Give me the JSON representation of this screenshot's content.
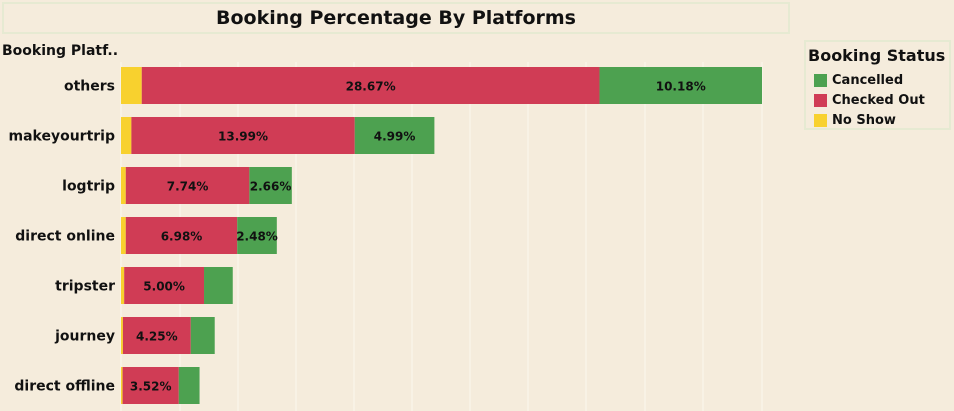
{
  "colors": {
    "cancelled": "#4da150",
    "checked_out": "#d03c55",
    "no_show": "#f8d12e"
  },
  "chart_data": {
    "type": "bar",
    "orientation": "horizontal",
    "stacked": true,
    "title": "Booking Percentage By Platforms",
    "ylabel": "Booking Platf..",
    "legend_title": "Booking Status",
    "legend_position": "right",
    "grid": true,
    "xlim": [
      0,
      40
    ],
    "categories": [
      "others",
      "makeyourtrip",
      "logtrip",
      "direct online",
      "tripster",
      "journey",
      "direct offline"
    ],
    "series": [
      {
        "name": "No Show",
        "values": [
          1.3,
          0.65,
          0.3,
          0.3,
          0.2,
          0.12,
          0.1
        ],
        "labels": [
          "",
          "",
          "",
          "",
          "",
          "",
          ""
        ]
      },
      {
        "name": "Checked Out",
        "values": [
          28.67,
          13.99,
          7.74,
          6.98,
          5.0,
          4.25,
          3.52
        ],
        "labels": [
          "28.67%",
          "13.99%",
          "7.74%",
          "6.98%",
          "5.00%",
          "4.25%",
          "3.52%"
        ]
      },
      {
        "name": "Cancelled",
        "values": [
          10.18,
          4.99,
          2.66,
          2.48,
          1.8,
          1.5,
          1.3
        ],
        "labels": [
          "10.18%",
          "4.99%",
          "2.66%",
          "2.48%",
          "",
          "",
          ""
        ]
      }
    ]
  },
  "legend_items": [
    {
      "label": "Cancelled",
      "color_key": "cancelled"
    },
    {
      "label": "Checked Out",
      "color_key": "checked_out"
    },
    {
      "label": "No Show",
      "color_key": "no_show"
    }
  ]
}
